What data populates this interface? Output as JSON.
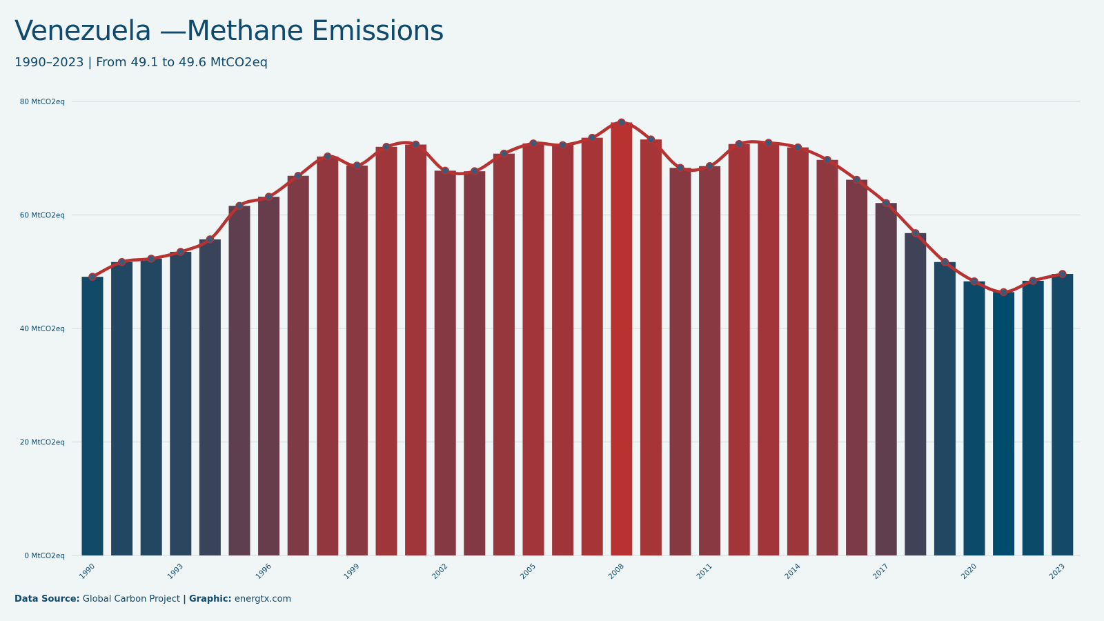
{
  "title": "Venezuela —Methane Emissions",
  "subtitle": "1990–2023 | From 49.1 to 49.6 MtCO2eq",
  "footer": {
    "source_label": "Data Source:",
    "source_value": "Global Carbon Project",
    "separator": "|",
    "graphic_label": "Graphic:",
    "graphic_value": "energtx.com"
  },
  "colors": {
    "background": "#f0f5f5",
    "text": "#0d4a6e",
    "low": "#004c6d",
    "high": "#b83232",
    "line": "#b83232",
    "marker": "#3c5a78",
    "grid": "#d7e2e4"
  },
  "chart_data": {
    "type": "bar",
    "ylim": [
      0,
      80
    ],
    "yticks": [
      {
        "value": 0,
        "label": "0 MtCO2eq"
      },
      {
        "value": 20,
        "label": "20 MtCO2eq"
      },
      {
        "value": 40,
        "label": "40 MtCO2eq"
      },
      {
        "value": 60,
        "label": "60 MtCO2eq"
      },
      {
        "value": 80,
        "label": "80 MtCO2eq"
      }
    ],
    "xtick_labels": [
      "1990",
      "1993",
      "1996",
      "1999",
      "2002",
      "2005",
      "2008",
      "2011",
      "2014",
      "2017",
      "2020",
      "2023"
    ],
    "categories": [
      "1990",
      "1991",
      "1992",
      "1993",
      "1994",
      "1995",
      "1996",
      "1997",
      "1998",
      "1999",
      "2000",
      "2001",
      "2002",
      "2003",
      "2004",
      "2005",
      "2006",
      "2007",
      "2008",
      "2009",
      "2010",
      "2011",
      "2012",
      "2013",
      "2014",
      "2015",
      "2016",
      "2017",
      "2018",
      "2019",
      "2020",
      "2021",
      "2022",
      "2023"
    ],
    "values": [
      49.1,
      51.7,
      52.3,
      53.5,
      55.7,
      61.6,
      63.2,
      66.9,
      70.3,
      68.7,
      72.0,
      72.4,
      67.8,
      67.7,
      70.8,
      72.6,
      72.3,
      73.6,
      76.3,
      73.3,
      68.3,
      68.6,
      72.5,
      72.7,
      71.9,
      69.7,
      66.2,
      62.1,
      56.8,
      51.7,
      48.3,
      46.4,
      48.4,
      49.6
    ],
    "grid": true,
    "overlay_line": true
  }
}
